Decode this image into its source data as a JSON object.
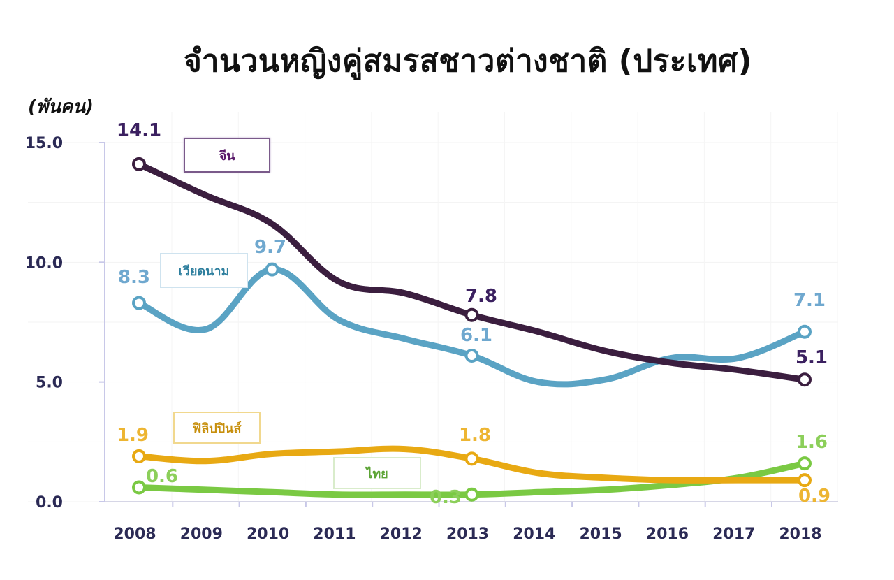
{
  "title": "จำนวนหญิงคู่สมรสชาวต่างชาติ (ประเทศ)",
  "y_unit_label": "(พันคน)",
  "legend": {
    "china": "จีน",
    "vietnam": "เวียดนาม",
    "philippines": "ฟิลิปปินส์",
    "thailand": "ไทย"
  },
  "y_ticks": [
    "0.0",
    "5.0",
    "10.0",
    "15.0"
  ],
  "x_ticks": [
    "2008",
    "2009",
    "2010",
    "2011",
    "2012",
    "2013",
    "2014",
    "2015",
    "2016",
    "2017",
    "2018"
  ],
  "data_labels": {
    "china": {
      "2008": "14.1",
      "2013": "7.8",
      "2018": "5.1"
    },
    "vietnam": {
      "2008": "8.3",
      "2010": "9.7",
      "2013": "6.1",
      "2018": "7.1"
    },
    "philippines": {
      "2008": "1.9",
      "2013": "1.8",
      "2018": "0.9"
    },
    "thailand": {
      "2008": "0.6",
      "2013": "0.3",
      "2018": "1.6"
    }
  },
  "colors": {
    "china": "#3b1e3f",
    "vietnam": "#5aa3c4",
    "philippines": "#e8a913",
    "thailand": "#7ac943",
    "axis": "#c8c8e8",
    "tick_text": "#2b2a55"
  },
  "chart_data": {
    "type": "line",
    "title": "จำนวนหญิงคู่สมรสชาวต่างชาติ (ประเทศ)",
    "xlabel": "",
    "ylabel": "(พันคน)",
    "x": [
      2008,
      2009,
      2010,
      2011,
      2012,
      2013,
      2014,
      2015,
      2016,
      2017,
      2018
    ],
    "ylim": [
      0,
      15
    ],
    "yticks": [
      0.0,
      5.0,
      10.0,
      15.0
    ],
    "grid": true,
    "legend_position": "inline labels",
    "series": [
      {
        "name": "จีน",
        "color": "#3b1e3f",
        "values": [
          14.1,
          12.8,
          11.6,
          9.2,
          8.7,
          7.8,
          7.1,
          6.3,
          5.8,
          5.5,
          5.1
        ]
      },
      {
        "name": "เวียดนาม",
        "color": "#5aa3c4",
        "values": [
          8.3,
          7.2,
          9.7,
          7.6,
          6.8,
          6.1,
          5.0,
          5.1,
          6.0,
          6.0,
          7.1
        ]
      },
      {
        "name": "ฟิลิปปินส์",
        "color": "#e8a913",
        "values": [
          1.9,
          1.7,
          2.0,
          2.1,
          2.2,
          1.8,
          1.2,
          1.0,
          0.9,
          0.9,
          0.9
        ]
      },
      {
        "name": "ไทย",
        "color": "#7ac943",
        "values": [
          0.6,
          0.5,
          0.4,
          0.3,
          0.3,
          0.3,
          0.4,
          0.5,
          0.7,
          1.0,
          1.6
        ]
      }
    ],
    "annotations": [
      {
        "series": "จีน",
        "x": 2008,
        "label": "14.1"
      },
      {
        "series": "จีน",
        "x": 2013,
        "label": "7.8"
      },
      {
        "series": "จีน",
        "x": 2018,
        "label": "5.1"
      },
      {
        "series": "เวียดนาม",
        "x": 2008,
        "label": "8.3"
      },
      {
        "series": "เวียดนาม",
        "x": 2010,
        "label": "9.7"
      },
      {
        "series": "เวียดนาม",
        "x": 2013,
        "label": "6.1"
      },
      {
        "series": "เวียดนาม",
        "x": 2018,
        "label": "7.1"
      },
      {
        "series": "ฟิลิปปินส์",
        "x": 2008,
        "label": "1.9"
      },
      {
        "series": "ฟิลิปปินส์",
        "x": 2013,
        "label": "1.8"
      },
      {
        "series": "ฟิลิปปินส์",
        "x": 2018,
        "label": "0.9"
      },
      {
        "series": "ไทย",
        "x": 2008,
        "label": "0.6"
      },
      {
        "series": "ไทย",
        "x": 2013,
        "label": "0.3"
      },
      {
        "series": "ไทย",
        "x": 2018,
        "label": "1.6"
      }
    ]
  }
}
